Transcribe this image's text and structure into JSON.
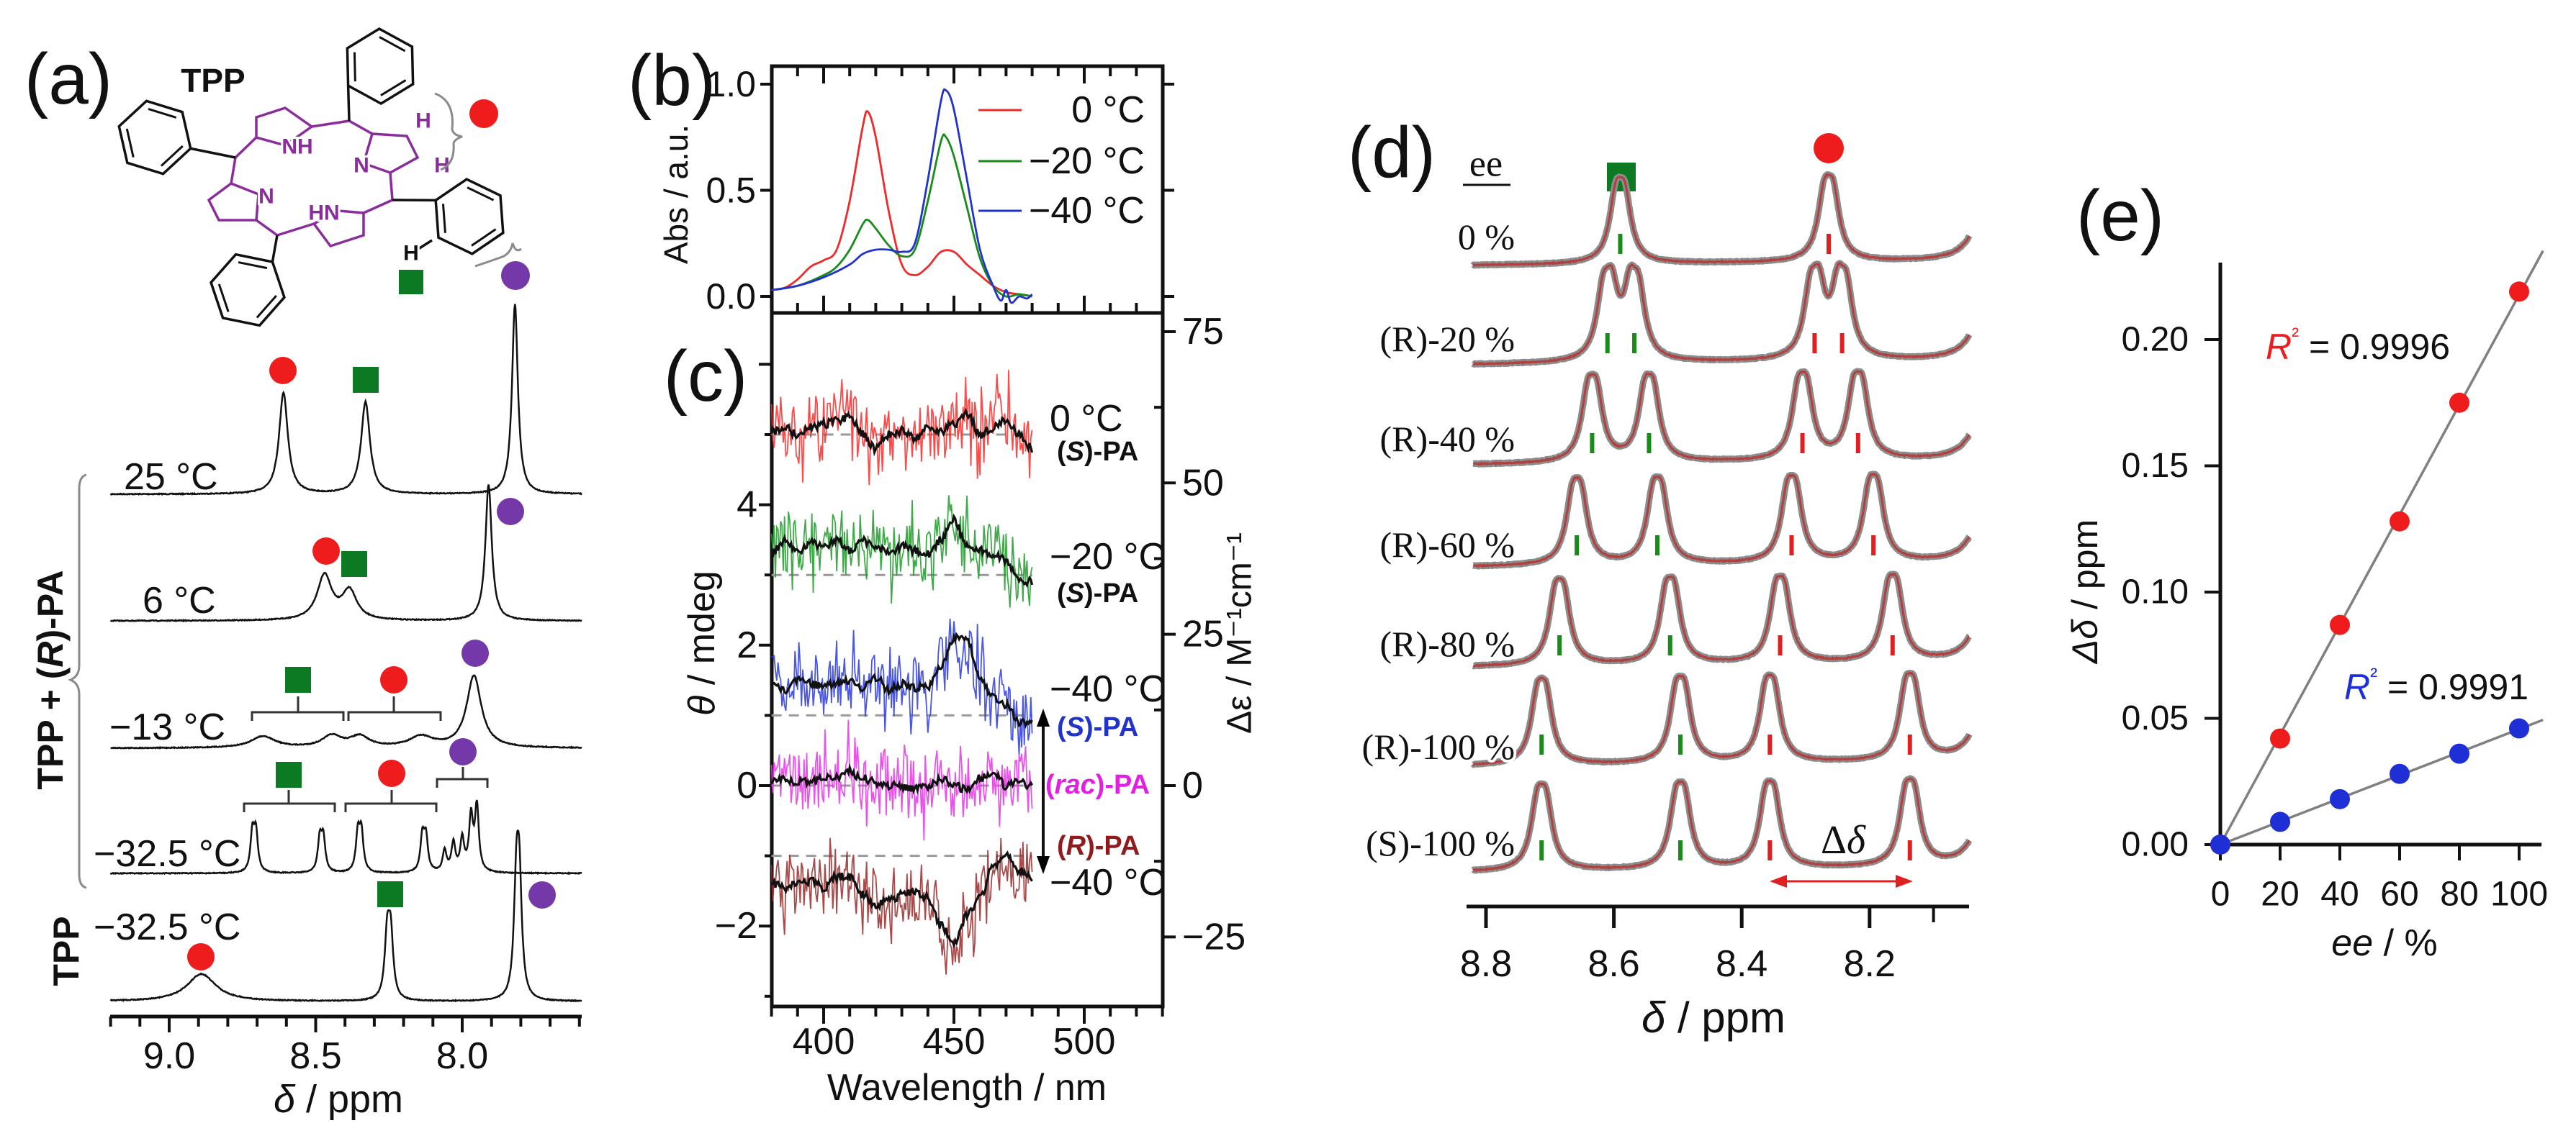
{
  "colors": {
    "red": "#ee1c1c",
    "green": "#0b7a23",
    "purple": "#7438a8",
    "blue": "#1f2fd6",
    "magenta": "#e022e0",
    "darkred": "#8e1c1c",
    "grey": "#8a8a8a",
    "fit": "#b2403f",
    "structure": "#8a2c9c"
  },
  "chart_data": [
    {
      "panel_label": "(a)",
      "type": "line",
      "structure_label": "TPP",
      "structure_atom_labels": [
        "NH",
        "N",
        "HN",
        "N",
        "H",
        "H",
        "H"
      ],
      "xlabel": "δ / ppm",
      "xlim": [
        9.2,
        7.6
      ],
      "xticks": [
        9.0,
        8.5,
        8.0
      ],
      "xtick_labels": [
        "9.0",
        "8.5",
        "8.0"
      ],
      "group_labels": [
        "TPP + (R)-PA",
        "TPP"
      ],
      "series": [
        {
          "name": "25 °C",
          "peaks": [
            {
              "ppm": 8.61,
              "h": 1.41,
              "w": 0.018
            },
            {
              "ppm": 8.33,
              "h": 1.28,
              "w": 0.018
            },
            {
              "ppm": 7.82,
              "h": 2.64,
              "w": 0.012
            }
          ]
        },
        {
          "name": "6 °C",
          "peaks": [
            {
              "ppm": 8.47,
              "h": 0.62,
              "w": 0.03
            },
            {
              "ppm": 8.385,
              "h": 0.4,
              "w": 0.03
            },
            {
              "ppm": 7.91,
              "h": 1.89,
              "w": 0.013
            }
          ]
        },
        {
          "name": "−13 °C",
          "peaks": [
            {
              "ppm": 8.68,
              "h": 0.16,
              "w": 0.05
            },
            {
              "ppm": 8.445,
              "h": 0.16,
              "w": 0.04
            },
            {
              "ppm": 8.35,
              "h": 0.15,
              "w": 0.04
            },
            {
              "ppm": 8.14,
              "h": 0.15,
              "w": 0.05
            },
            {
              "ppm": 7.96,
              "h": 1.0,
              "w": 0.03
            }
          ]
        },
        {
          "name": "−32.5 °C",
          "peaks": [
            {
              "ppm": 8.71,
              "h": 0.7,
              "w": 0.008,
              "split": 0.012
            },
            {
              "ppm": 8.48,
              "h": 0.6,
              "w": 0.008,
              "split": 0.012
            },
            {
              "ppm": 8.35,
              "h": 0.7,
              "w": 0.008,
              "split": 0.012
            },
            {
              "ppm": 8.13,
              "h": 0.62,
              "w": 0.008,
              "split": 0.012
            },
            {
              "ppm": 8.06,
              "h": 0.3,
              "w": 0.008
            },
            {
              "ppm": 8.03,
              "h": 0.4,
              "w": 0.008
            },
            {
              "ppm": 8.0,
              "h": 0.45,
              "w": 0.008
            },
            {
              "ppm": 7.97,
              "h": 0.75,
              "w": 0.008
            },
            {
              "ppm": 7.95,
              "h": 0.9,
              "w": 0.008
            }
          ]
        },
        {
          "name": "−32.5 °C",
          "peaks": [
            {
              "ppm": 8.89,
              "h": 0.38,
              "w": 0.06
            },
            {
              "ppm": 8.25,
              "h": 1.21,
              "w": 0.01,
              "split": 0.012
            },
            {
              "ppm": 7.81,
              "h": 2.23,
              "w": 0.01,
              "split": 0.01
            }
          ]
        }
      ]
    },
    {
      "panel_label": "(b)",
      "type": "line",
      "ylabel": "Abs / a.u.",
      "xlim": [
        380,
        530
      ],
      "ylim": [
        -0.07,
        1.09
      ],
      "yticks": [
        0.0,
        0.5,
        1.0
      ],
      "ytick_labels": [
        "0.0",
        "0.5",
        "1.0"
      ],
      "legend": "top-right",
      "series": [
        {
          "name": "0 °C",
          "color": "#ee2a2a",
          "points": [
            [
              380,
              0.03
            ],
            [
              385,
              0.04
            ],
            [
              390,
              0.08
            ],
            [
              395,
              0.14
            ],
            [
              400,
              0.17
            ],
            [
              405,
              0.22
            ],
            [
              410,
              0.45
            ],
            [
              415,
              0.8
            ],
            [
              417,
              0.87
            ],
            [
              420,
              0.75
            ],
            [
              425,
              0.4
            ],
            [
              430,
              0.15
            ],
            [
              435,
              0.1
            ],
            [
              440,
              0.14
            ],
            [
              445,
              0.21
            ],
            [
              450,
              0.21
            ],
            [
              455,
              0.15
            ],
            [
              460,
              0.1
            ],
            [
              465,
              0.05
            ],
            [
              470,
              0.02
            ],
            [
              475,
              0.01
            ],
            [
              480,
              0.0
            ]
          ]
        },
        {
          "name": "−20 °C",
          "color": "#1a8a1a",
          "points": [
            [
              380,
              0.03
            ],
            [
              390,
              0.05
            ],
            [
              400,
              0.1
            ],
            [
              405,
              0.14
            ],
            [
              410,
              0.22
            ],
            [
              415,
              0.34
            ],
            [
              417,
              0.36
            ],
            [
              420,
              0.32
            ],
            [
              425,
              0.24
            ],
            [
              430,
              0.19
            ],
            [
              435,
              0.22
            ],
            [
              440,
              0.45
            ],
            [
              445,
              0.73
            ],
            [
              447,
              0.75
            ],
            [
              450,
              0.66
            ],
            [
              455,
              0.42
            ],
            [
              460,
              0.18
            ],
            [
              465,
              0.05
            ],
            [
              470,
              0.0
            ],
            [
              475,
              0.01
            ],
            [
              480,
              0.0
            ]
          ]
        },
        {
          "name": "−40 °C",
          "color": "#2233cc",
          "points": [
            [
              380,
              0.03
            ],
            [
              390,
              0.05
            ],
            [
              400,
              0.09
            ],
            [
              410,
              0.15
            ],
            [
              415,
              0.2
            ],
            [
              420,
              0.22
            ],
            [
              425,
              0.22
            ],
            [
              430,
              0.21
            ],
            [
              435,
              0.25
            ],
            [
              440,
              0.55
            ],
            [
              445,
              0.92
            ],
            [
              447,
              0.97
            ],
            [
              450,
              0.88
            ],
            [
              455,
              0.55
            ],
            [
              460,
              0.22
            ],
            [
              465,
              0.05
            ],
            [
              468,
              -0.02
            ],
            [
              470,
              0.03
            ],
            [
              472,
              -0.03
            ],
            [
              475,
              0.0
            ],
            [
              478,
              -0.01
            ],
            [
              480,
              0.01
            ]
          ]
        }
      ]
    },
    {
      "panel_label": "(c)",
      "type": "line",
      "xlabel": "Wavelength / nm",
      "ylabel": "θ / mdeg",
      "ylabel_right": "Δε / M⁻¹cm⁻¹",
      "xlim": [
        380,
        530
      ],
      "xticks": [
        400,
        450,
        500
      ],
      "xtick_labels": [
        "400",
        "450",
        "500"
      ],
      "ylim": [
        -3.15,
        6.73
      ],
      "yticks": [
        -2,
        0,
        2,
        4
      ],
      "ytick_labels": [
        "−2",
        "0",
        "2",
        "4"
      ],
      "right_ticks": [
        75,
        50,
        25,
        0,
        -25
      ],
      "right_tick_labels": [
        "75",
        "50",
        "25",
        "0",
        "−25"
      ],
      "delta_eps_per_mdeg": 11.6,
      "wavelength_start": 380,
      "wavelength_step": 5,
      "series": [
        {
          "temp": "0 °C",
          "name": "(S)-PA",
          "color": "#ff2a2a",
          "label_color": "#111111",
          "offset": 5,
          "values": [
            5.05,
            5.1,
            5.0,
            5.1,
            5.15,
            5.2,
            5.25,
            5.0,
            4.8,
            5.0,
            5.05,
            4.95,
            5.1,
            5.05,
            5.15,
            5.3,
            5.0,
            5.1,
            5.2,
            5.0,
            4.8
          ]
        },
        {
          "temp": "−20 °C",
          "name": "(S)-PA",
          "color": "#1f9a2a",
          "label_color": "#111111",
          "offset": 3,
          "values": [
            3.3,
            3.5,
            3.35,
            3.45,
            3.4,
            3.5,
            3.35,
            3.5,
            3.4,
            3.3,
            3.4,
            3.35,
            3.3,
            3.5,
            3.8,
            3.4,
            3.35,
            3.3,
            3.2,
            2.9,
            2.9
          ]
        },
        {
          "temp": "−40 °C",
          "name": "(S)-PA",
          "color": "#2a3ae0",
          "label_color": "#2233cc",
          "offset": 1,
          "values": [
            1.45,
            1.35,
            1.5,
            1.45,
            1.4,
            1.45,
            1.5,
            1.4,
            1.55,
            1.35,
            1.45,
            1.4,
            1.4,
            1.7,
            2.1,
            2.1,
            1.5,
            1.25,
            1.15,
            0.9,
            0.9
          ]
        },
        {
          "temp": "",
          "name": "(rac)-PA",
          "color": "#e535e5",
          "label_color": "#e022e0",
          "offset": 0,
          "values": [
            0.05,
            0.1,
            0.05,
            0.05,
            0.1,
            0.1,
            0.2,
            0.1,
            0.05,
            0.0,
            0.0,
            -0.05,
            0.0,
            0.1,
            0.0,
            -0.05,
            0.1,
            0.2,
            0.0,
            0.05,
            0.0
          ]
        },
        {
          "temp": "−40 °C",
          "name": "(R)-PA",
          "color": "#9a2a2a",
          "label_color": "#8e1c1c",
          "offset": -1,
          "values": [
            -1.4,
            -1.45,
            -1.4,
            -1.35,
            -1.45,
            -1.3,
            -1.3,
            -1.55,
            -1.7,
            -1.65,
            -1.55,
            -1.5,
            -1.6,
            -2.0,
            -2.25,
            -1.85,
            -1.6,
            -1.15,
            -1.0,
            -1.2,
            -1.3
          ]
        }
      ]
    },
    {
      "panel_label": "(d)",
      "type": "line",
      "row_header": "ee",
      "xlabel": "δ / ppm",
      "xlim": [
        8.83,
        8.044
      ],
      "xticks": [
        8.8,
        8.6,
        8.4,
        8.2
      ],
      "xtick_labels": [
        "8.8",
        "8.6",
        "8.4",
        "8.2"
      ],
      "annotation": "Δδ",
      "rows": [
        {
          "label": "0 %",
          "green": [
            8.59
          ],
          "red": [
            8.264
          ]
        },
        {
          "label": "(R)-20 %",
          "green": [
            8.61,
            8.568
          ],
          "red": [
            8.286,
            8.243
          ]
        },
        {
          "label": "(R)-40 %",
          "green": [
            8.634,
            8.545
          ],
          "red": [
            8.305,
            8.218
          ]
        },
        {
          "label": "(R)-60 %",
          "green": [
            8.658,
            8.532
          ],
          "red": [
            8.322,
            8.194
          ]
        },
        {
          "label": "(R)-80 %",
          "green": [
            8.685,
            8.512
          ],
          "red": [
            8.34,
            8.164
          ]
        },
        {
          "label": "(R)-100 %",
          "green": [
            8.713,
            8.496
          ],
          "red": [
            8.356,
            8.137
          ]
        },
        {
          "label": "(S)-100 %",
          "green": [
            8.713,
            8.496
          ],
          "red": [
            8.356,
            8.137
          ]
        }
      ]
    },
    {
      "panel_label": "(e)",
      "type": "scatter",
      "xlabel": "ee / %",
      "ylabel": "Δδ / ppm",
      "xlim": [
        0,
        107.5
      ],
      "ylim": [
        0,
        0.2305
      ],
      "xticks": [
        0,
        20,
        40,
        60,
        80,
        100
      ],
      "xtick_labels": [
        "0",
        "20",
        "40",
        "60",
        "80",
        "100"
      ],
      "yticks": [
        0,
        0.05,
        0.1,
        0.15,
        0.2
      ],
      "ytick_labels": [
        "0.00",
        "0.05",
        "0.10",
        "0.15",
        "0.20"
      ],
      "x": [
        0,
        20,
        40,
        60,
        80,
        100
      ],
      "series": [
        {
          "name": "red",
          "color": "#ee1c1c",
          "values": [
            0,
            0.042,
            0.087,
            0.128,
            0.175,
            0.219
          ],
          "r2_label": "R² = 0.9996"
        },
        {
          "name": "blue",
          "color": "#1f2fd6",
          "values": [
            0,
            0.009,
            0.018,
            0.028,
            0.036,
            0.046
          ],
          "r2_label": "R² = 0.9991"
        }
      ]
    }
  ]
}
